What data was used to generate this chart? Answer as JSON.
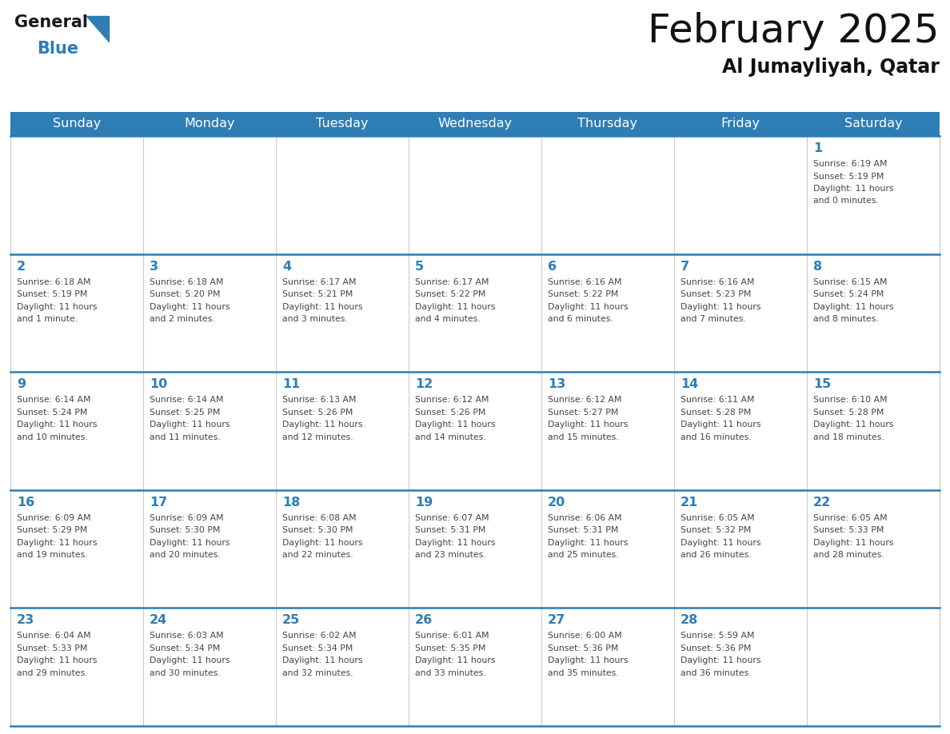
{
  "title": "February 2025",
  "subtitle": "Al Jumayliyah, Qatar",
  "header_bg": "#2E7DB5",
  "header_text": "#FFFFFF",
  "cell_bg": "#FFFFFF",
  "separator_color": "#2E7DB5",
  "day_number_color": "#2E7DB5",
  "text_color": "#444444",
  "grid_color": "#CCCCCC",
  "days_of_week": [
    "Sunday",
    "Monday",
    "Tuesday",
    "Wednesday",
    "Thursday",
    "Friday",
    "Saturday"
  ],
  "calendar_data": [
    [
      null,
      null,
      null,
      null,
      null,
      null,
      {
        "day": 1,
        "sunrise": "6:19 AM",
        "sunset": "5:19 PM",
        "daylight": "11 hours and 0 minutes."
      }
    ],
    [
      {
        "day": 2,
        "sunrise": "6:18 AM",
        "sunset": "5:19 PM",
        "daylight": "11 hours and 1 minute."
      },
      {
        "day": 3,
        "sunrise": "6:18 AM",
        "sunset": "5:20 PM",
        "daylight": "11 hours and 2 minutes."
      },
      {
        "day": 4,
        "sunrise": "6:17 AM",
        "sunset": "5:21 PM",
        "daylight": "11 hours and 3 minutes."
      },
      {
        "day": 5,
        "sunrise": "6:17 AM",
        "sunset": "5:22 PM",
        "daylight": "11 hours and 4 minutes."
      },
      {
        "day": 6,
        "sunrise": "6:16 AM",
        "sunset": "5:22 PM",
        "daylight": "11 hours and 6 minutes."
      },
      {
        "day": 7,
        "sunrise": "6:16 AM",
        "sunset": "5:23 PM",
        "daylight": "11 hours and 7 minutes."
      },
      {
        "day": 8,
        "sunrise": "6:15 AM",
        "sunset": "5:24 PM",
        "daylight": "11 hours and 8 minutes."
      }
    ],
    [
      {
        "day": 9,
        "sunrise": "6:14 AM",
        "sunset": "5:24 PM",
        "daylight": "11 hours and 10 minutes."
      },
      {
        "day": 10,
        "sunrise": "6:14 AM",
        "sunset": "5:25 PM",
        "daylight": "11 hours and 11 minutes."
      },
      {
        "day": 11,
        "sunrise": "6:13 AM",
        "sunset": "5:26 PM",
        "daylight": "11 hours and 12 minutes."
      },
      {
        "day": 12,
        "sunrise": "6:12 AM",
        "sunset": "5:26 PM",
        "daylight": "11 hours and 14 minutes."
      },
      {
        "day": 13,
        "sunrise": "6:12 AM",
        "sunset": "5:27 PM",
        "daylight": "11 hours and 15 minutes."
      },
      {
        "day": 14,
        "sunrise": "6:11 AM",
        "sunset": "5:28 PM",
        "daylight": "11 hours and 16 minutes."
      },
      {
        "day": 15,
        "sunrise": "6:10 AM",
        "sunset": "5:28 PM",
        "daylight": "11 hours and 18 minutes."
      }
    ],
    [
      {
        "day": 16,
        "sunrise": "6:09 AM",
        "sunset": "5:29 PM",
        "daylight": "11 hours and 19 minutes."
      },
      {
        "day": 17,
        "sunrise": "6:09 AM",
        "sunset": "5:30 PM",
        "daylight": "11 hours and 20 minutes."
      },
      {
        "day": 18,
        "sunrise": "6:08 AM",
        "sunset": "5:30 PM",
        "daylight": "11 hours and 22 minutes."
      },
      {
        "day": 19,
        "sunrise": "6:07 AM",
        "sunset": "5:31 PM",
        "daylight": "11 hours and 23 minutes."
      },
      {
        "day": 20,
        "sunrise": "6:06 AM",
        "sunset": "5:31 PM",
        "daylight": "11 hours and 25 minutes."
      },
      {
        "day": 21,
        "sunrise": "6:05 AM",
        "sunset": "5:32 PM",
        "daylight": "11 hours and 26 minutes."
      },
      {
        "day": 22,
        "sunrise": "6:05 AM",
        "sunset": "5:33 PM",
        "daylight": "11 hours and 28 minutes."
      }
    ],
    [
      {
        "day": 23,
        "sunrise": "6:04 AM",
        "sunset": "5:33 PM",
        "daylight": "11 hours and 29 minutes."
      },
      {
        "day": 24,
        "sunrise": "6:03 AM",
        "sunset": "5:34 PM",
        "daylight": "11 hours and 30 minutes."
      },
      {
        "day": 25,
        "sunrise": "6:02 AM",
        "sunset": "5:34 PM",
        "daylight": "11 hours and 32 minutes."
      },
      {
        "day": 26,
        "sunrise": "6:01 AM",
        "sunset": "5:35 PM",
        "daylight": "11 hours and 33 minutes."
      },
      {
        "day": 27,
        "sunrise": "6:00 AM",
        "sunset": "5:36 PM",
        "daylight": "11 hours and 35 minutes."
      },
      {
        "day": 28,
        "sunrise": "5:59 AM",
        "sunset": "5:36 PM",
        "daylight": "11 hours and 36 minutes."
      },
      null
    ]
  ],
  "logo_general_color": "#1a1a1a",
  "logo_blue_color": "#2E7DB5",
  "logo_triangle_color": "#2E7DB5"
}
